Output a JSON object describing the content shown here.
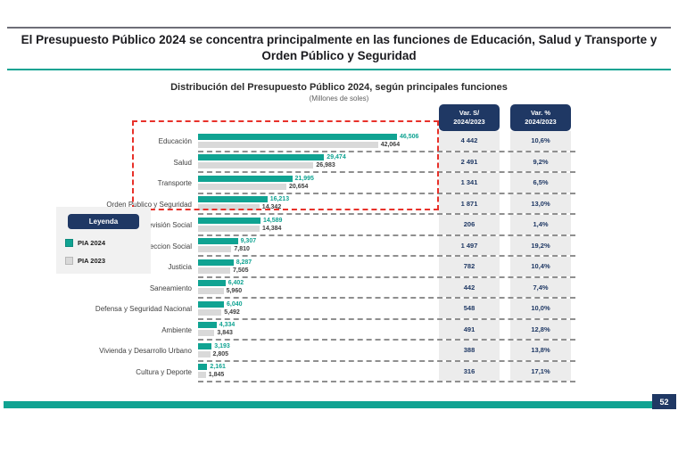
{
  "page": {
    "title": "El Presupuesto Público 2024 se concentra principalmente en las funciones de Educación, Salud y Transporte y Orden Público y Seguridad",
    "page_number": "52"
  },
  "legend": {
    "title": "Leyenda",
    "items": [
      {
        "label": "PIA 2024",
        "color": "#10A392"
      },
      {
        "label": "PIA 2023",
        "color": "#D9D9D9"
      }
    ]
  },
  "colors": {
    "accent_teal": "#10A392",
    "navy": "#1F3864",
    "bar_2023_gray": "#D9D9D9",
    "var_column_bg": "#ECECEC",
    "highlight_red": "#E8312A"
  },
  "chart_data": {
    "type": "bar",
    "orientation": "horizontal",
    "title": "Distribución del Presupuesto Público 2024, según principales funciones",
    "subtitle": "(Millones de soles)",
    "xmax": 46506,
    "grid": false,
    "legend_position": "left",
    "categories": [
      "Educación",
      "Salud",
      "Transporte",
      "Orden Publico y Seguridad",
      "Previsión Social",
      "Proteccion Social",
      "Justicia",
      "Saneamiento",
      "Defensa y Seguridad Nacional",
      "Ambiente",
      "Vivienda y Desarrollo Urbano",
      "Cultura y Deporte"
    ],
    "series": [
      {
        "name": "PIA 2024",
        "color": "#10A392",
        "values": [
          46506,
          29474,
          21995,
          16213,
          14589,
          9307,
          8287,
          6402,
          6040,
          4334,
          3193,
          2161
        ],
        "labels": [
          "46,506",
          "29,474",
          "21,995",
          "16,213",
          "14,589",
          "9,307",
          "8,287",
          "6,402",
          "6,040",
          "4,334",
          "3,193",
          "2,161"
        ]
      },
      {
        "name": "PIA 2023",
        "color": "#D9D9D9",
        "values": [
          42064,
          26983,
          20654,
          14342,
          14384,
          7810,
          7505,
          5960,
          5492,
          3843,
          2805,
          1845
        ],
        "labels": [
          "42,064",
          "26,983",
          "20,654",
          "14,342",
          "14,384",
          "7,810",
          "7,505",
          "5,960",
          "5,492",
          "3,843",
          "2,805",
          "1,845"
        ]
      }
    ],
    "columns": [
      {
        "header_line1": "Var. S/",
        "header_line2": "2024/2023",
        "values": [
          "4 442",
          "2 491",
          "1 341",
          "1 871",
          "206",
          "1 497",
          "782",
          "442",
          "548",
          "491",
          "388",
          "316"
        ]
      },
      {
        "header_line1": "Var. %",
        "header_line2": "2024/2023",
        "values": [
          "10,6%",
          "9,2%",
          "6,5%",
          "13,0%",
          "1,4%",
          "19,2%",
          "10,4%",
          "7,4%",
          "10,0%",
          "12,8%",
          "13,8%",
          "17,1%"
        ]
      }
    ],
    "highlighted_categories": [
      "Educación",
      "Salud",
      "Transporte",
      "Orden Publico y Seguridad"
    ]
  }
}
